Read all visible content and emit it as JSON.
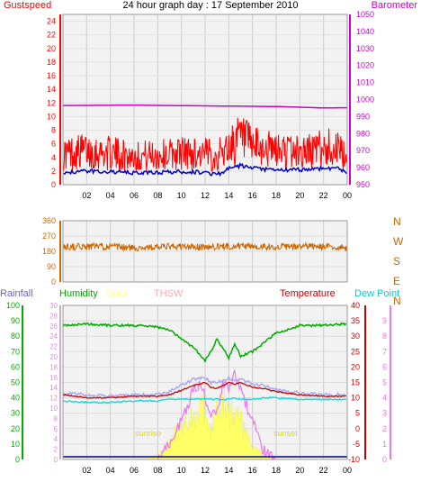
{
  "title": "24 hour graph day : 17 September 2010",
  "colors": {
    "gust": "#ff0000",
    "wind": "#0000cc",
    "baro": "#cc00cc",
    "dir": "#cc6600",
    "temp": "#cc0000",
    "humidity": "#00aa00",
    "dew": "#00dddd",
    "thsw": "#ffaaaa",
    "solar": "#ffff66",
    "uv": "#ee77ee",
    "rain": "#6666cc",
    "grid": "#cccccc",
    "plotbg": "#f2f2f2"
  },
  "x_ticks": [
    "02",
    "04",
    "06",
    "08",
    "10",
    "12",
    "14",
    "16",
    "18",
    "20",
    "22",
    "00"
  ],
  "chart_data": [
    {
      "type": "line",
      "title": "24 hour graph day : 17 September 2010",
      "left_label": "Gustspeed",
      "right_label": "Barometer",
      "ylim_left": [
        0,
        25
      ],
      "left_ticks": [
        0,
        2,
        4,
        6,
        8,
        10,
        12,
        14,
        16,
        18,
        20,
        22,
        24
      ],
      "ylim_right": [
        950,
        1050
      ],
      "right_ticks": [
        950,
        960,
        970,
        980,
        990,
        1000,
        1010,
        1020,
        1030,
        1040,
        1050
      ],
      "x_hours": [
        0,
        2,
        4,
        6,
        8,
        10,
        12,
        13,
        14,
        15,
        16,
        18,
        20,
        22,
        23,
        24
      ],
      "gust": [
        4.5,
        5,
        4.6,
        4.2,
        4.3,
        4.7,
        4.5,
        4.2,
        5.5,
        6.8,
        5.5,
        5,
        4.8,
        5.3,
        5.6,
        3.5
      ],
      "wind": [
        1.8,
        2,
        1.9,
        1.7,
        1.8,
        1.9,
        1.8,
        1.5,
        2.3,
        2.8,
        2.4,
        2.1,
        2.2,
        2.4,
        2.5,
        1.8
      ],
      "baro_x": [
        0,
        6,
        12,
        18,
        22,
        24
      ],
      "barometer": [
        996.5,
        996.7,
        996.3,
        995.9,
        995.1,
        995.2
      ]
    },
    {
      "type": "scatter",
      "right_label_letters": [
        "N",
        "W",
        "S",
        "E",
        "N"
      ],
      "ylim": [
        0,
        360
      ],
      "ticks": [
        0,
        90,
        180,
        270,
        360
      ],
      "x_hours": [
        0,
        3,
        6,
        9,
        12,
        15,
        18,
        21,
        24
      ],
      "direction": [
        205,
        210,
        200,
        208,
        205,
        212,
        206,
        210,
        200
      ]
    },
    {
      "type": "line",
      "series_labels": {
        "rainfall": "Rainfall",
        "humidity": "Humidity",
        "solar": "Solar",
        "thsw": "THSW",
        "temperature": "Temperature",
        "dewpoint": "Dew Point"
      },
      "temp_axis": {
        "ylim": [
          -10,
          40
        ],
        "ticks": [
          -10,
          -5,
          0,
          5,
          10,
          15,
          20,
          25,
          30,
          35,
          40
        ]
      },
      "humidity_axis": {
        "ylim": [
          0,
          100
        ],
        "ticks": [
          0,
          10,
          20,
          30,
          40,
          50,
          60,
          70,
          80,
          90,
          100
        ]
      },
      "inner_axis": {
        "ylim": [
          0,
          30
        ],
        "ticks": [
          0,
          2,
          4,
          6,
          8,
          10,
          12,
          14,
          16,
          18,
          20,
          22,
          24,
          26,
          28,
          30
        ]
      },
      "uv_axis": {
        "ylim": [
          0,
          10
        ],
        "ticks": [
          0,
          1,
          2,
          3,
          4,
          5,
          6,
          7,
          8,
          9
        ]
      },
      "x_hours": [
        0,
        2,
        4,
        6,
        8,
        9,
        10,
        11,
        12,
        12.5,
        13,
        14,
        14.5,
        15,
        16,
        17,
        18,
        20,
        22,
        24
      ],
      "humidity": [
        87,
        88,
        87,
        87,
        86,
        84,
        78,
        73,
        64,
        70,
        78,
        66,
        75,
        67,
        70,
        76,
        82,
        87,
        87,
        88
      ],
      "temperature": [
        11,
        10,
        10,
        10.5,
        10.5,
        11,
        12.5,
        14,
        15,
        13.5,
        13,
        15,
        14.5,
        15,
        13.5,
        13,
        12,
        11,
        10.5,
        10.5
      ],
      "thsw": [
        11.5,
        11,
        10.5,
        11,
        11,
        12,
        14,
        16,
        16.5,
        15,
        15,
        16.5,
        15.5,
        16,
        14.5,
        14,
        12.5,
        11.5,
        11,
        11
      ],
      "dewpoint": [
        9,
        8.5,
        8.5,
        9,
        9,
        9.5,
        9.5,
        9.5,
        9.5,
        9.5,
        9.5,
        9.5,
        10,
        9.5,
        9.5,
        10,
        10,
        9.5,
        9.5,
        9.5
      ],
      "solar_hours": [
        6.5,
        7.5,
        8.5,
        9,
        9.5,
        10,
        10.5,
        11,
        11.3,
        11.8,
        12,
        12.5,
        13,
        13.5,
        14,
        14.5,
        15,
        15.5,
        16,
        16.5,
        17,
        18.2
      ],
      "solar": [
        0,
        0.5,
        2,
        4,
        6,
        7.5,
        9,
        11,
        9,
        12,
        8,
        6,
        11,
        13,
        10,
        12,
        9,
        5,
        3,
        2,
        1,
        0
      ],
      "uv_hours": [
        8,
        9,
        10,
        10.5,
        11,
        11.5,
        12,
        12.5,
        13,
        13.5,
        14,
        14.5,
        15,
        15.5,
        16,
        16.5,
        17,
        18
      ],
      "uv": [
        0,
        1,
        2.5,
        3.5,
        4.5,
        5,
        4,
        3,
        3,
        5,
        4.5,
        5.5,
        4.5,
        3.5,
        2.5,
        1.5,
        0.5,
        0
      ],
      "sunrise_label": "sunrise",
      "sunset_label": "sunset",
      "rainfall": 0
    }
  ]
}
